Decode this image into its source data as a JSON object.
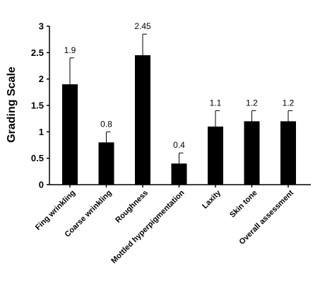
{
  "chart_data": {
    "type": "bar",
    "title": "",
    "xlabel": "",
    "ylabel": "Grading Scale",
    "ylim": [
      0,
      3
    ],
    "yticks": [
      "0",
      "0.5",
      "1",
      "1.5",
      "2",
      "2.5",
      "3"
    ],
    "categories": [
      "Fing wrinkling",
      "Coarse wrinkling",
      "Roughness",
      "Mottled hyperpigmentation",
      "Laxity",
      "Skin tone",
      "Overall assessment"
    ],
    "values": [
      1.9,
      0.8,
      2.45,
      0.4,
      1.1,
      1.2,
      1.2
    ],
    "value_labels": [
      "1.9",
      "0.8",
      "2.45",
      "0.4",
      "1.1",
      "1.2",
      "1.2"
    ],
    "error_upper": [
      0.5,
      0.2,
      0.4,
      0.2,
      0.3,
      0.2,
      0.2
    ],
    "bar_color": "#000000",
    "grid": false,
    "legend": "none"
  }
}
